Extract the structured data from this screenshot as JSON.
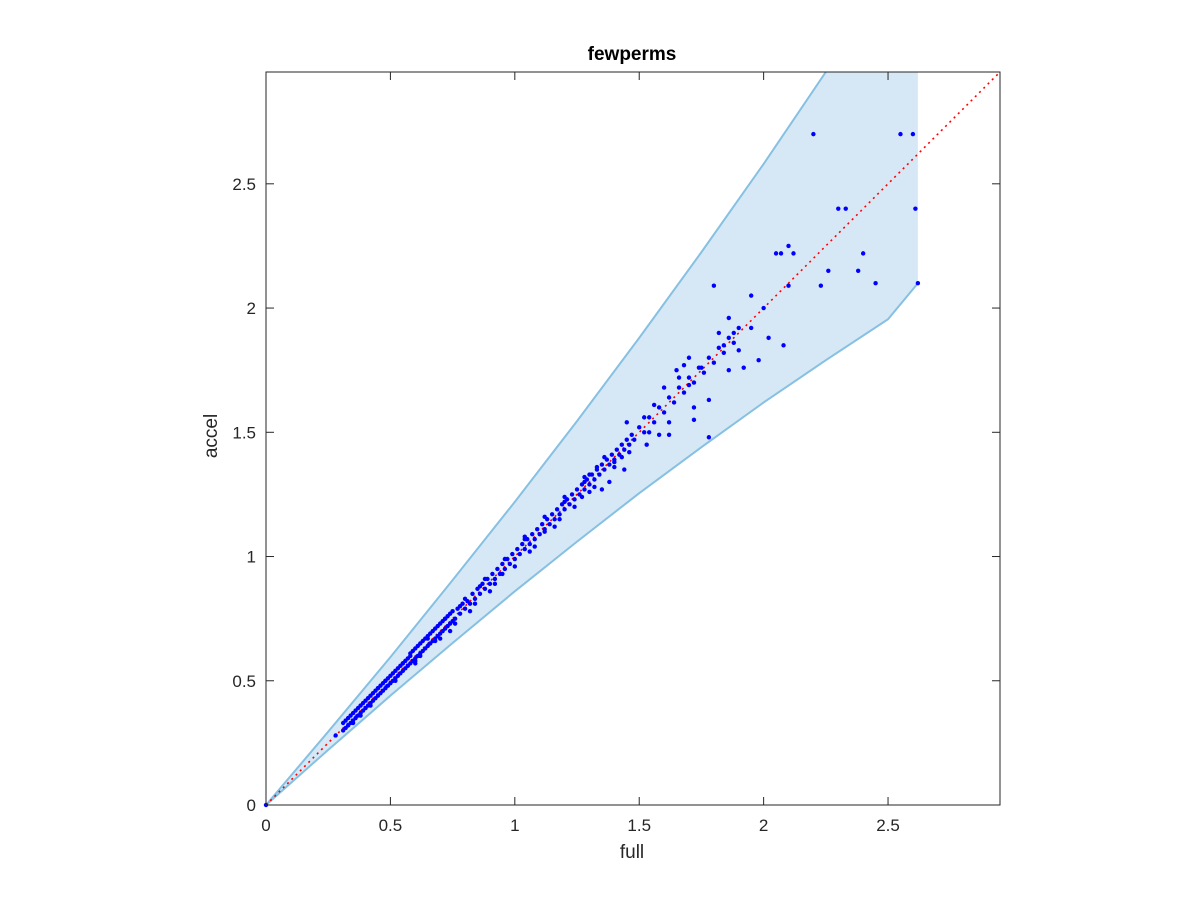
{
  "chart_data": {
    "type": "scatter",
    "title": "fewperms",
    "xlabel": "full",
    "ylabel": "accel",
    "xlim": [
      0,
      2.95
    ],
    "ylim": [
      0,
      2.95
    ],
    "xticks": [
      0,
      0.5,
      1,
      1.5,
      2,
      2.5
    ],
    "xtick_labels": [
      "0",
      "0.5",
      "1",
      "1.5",
      "2",
      "2.5"
    ],
    "yticks": [
      0,
      0.5,
      1,
      1.5,
      2,
      2.5
    ],
    "ytick_labels": [
      "0",
      "0.5",
      "1",
      "1.5",
      "2",
      "2.5"
    ],
    "grid": false,
    "box": true,
    "colors": {
      "points": "#0000ff",
      "band_fill": "#d6e8f5",
      "band_edge": "#86c0e2",
      "reference_line": "#ff0000"
    },
    "reference_line": {
      "style": "dotted",
      "x": [
        0,
        2.95
      ],
      "y": [
        0,
        2.95
      ]
    },
    "band": {
      "x": [
        0,
        0.25,
        0.5,
        0.75,
        1.0,
        1.25,
        1.5,
        1.75,
        2.0,
        2.25,
        2.5,
        2.62
      ],
      "upper": [
        0,
        0.295,
        0.595,
        0.905,
        1.22,
        1.545,
        1.88,
        2.225,
        2.58,
        2.95,
        3.33,
        3.52
      ],
      "lower": [
        0,
        0.222,
        0.44,
        0.652,
        0.86,
        1.06,
        1.255,
        1.44,
        1.62,
        1.79,
        1.955,
        2.1
      ],
      "right_edge": {
        "x": 2.62,
        "y_top": 2.95,
        "y_bottom": 2.1
      }
    },
    "series": [
      {
        "points": [
          [
            0,
            0
          ],
          [
            0.31,
            0.3
          ],
          [
            0.31,
            0.33
          ],
          [
            0.32,
            0.31
          ],
          [
            0.32,
            0.34
          ],
          [
            0.33,
            0.32
          ],
          [
            0.33,
            0.35
          ],
          [
            0.34,
            0.33
          ],
          [
            0.34,
            0.36
          ],
          [
            0.35,
            0.34
          ],
          [
            0.35,
            0.37
          ],
          [
            0.36,
            0.35
          ],
          [
            0.36,
            0.38
          ],
          [
            0.37,
            0.36
          ],
          [
            0.37,
            0.39
          ],
          [
            0.38,
            0.37
          ],
          [
            0.38,
            0.4
          ],
          [
            0.39,
            0.38
          ],
          [
            0.39,
            0.41
          ],
          [
            0.4,
            0.39
          ],
          [
            0.4,
            0.42
          ],
          [
            0.41,
            0.4
          ],
          [
            0.41,
            0.43
          ],
          [
            0.42,
            0.41
          ],
          [
            0.42,
            0.44
          ],
          [
            0.43,
            0.42
          ],
          [
            0.43,
            0.45
          ],
          [
            0.44,
            0.43
          ],
          [
            0.44,
            0.46
          ],
          [
            0.45,
            0.44
          ],
          [
            0.45,
            0.47
          ],
          [
            0.46,
            0.45
          ],
          [
            0.46,
            0.48
          ],
          [
            0.47,
            0.46
          ],
          [
            0.47,
            0.49
          ],
          [
            0.48,
            0.47
          ],
          [
            0.48,
            0.5
          ],
          [
            0.49,
            0.48
          ],
          [
            0.49,
            0.51
          ],
          [
            0.5,
            0.49
          ],
          [
            0.5,
            0.52
          ],
          [
            0.51,
            0.5
          ],
          [
            0.51,
            0.53
          ],
          [
            0.52,
            0.51
          ],
          [
            0.52,
            0.54
          ],
          [
            0.53,
            0.52
          ],
          [
            0.53,
            0.55
          ],
          [
            0.54,
            0.53
          ],
          [
            0.54,
            0.56
          ],
          [
            0.55,
            0.54
          ],
          [
            0.55,
            0.57
          ],
          [
            0.56,
            0.55
          ],
          [
            0.56,
            0.58
          ],
          [
            0.57,
            0.56
          ],
          [
            0.57,
            0.59
          ],
          [
            0.58,
            0.57
          ],
          [
            0.58,
            0.6
          ],
          [
            0.59,
            0.58
          ],
          [
            0.59,
            0.62
          ],
          [
            0.6,
            0.59
          ],
          [
            0.6,
            0.63
          ],
          [
            0.61,
            0.6
          ],
          [
            0.61,
            0.64
          ],
          [
            0.62,
            0.61
          ],
          [
            0.62,
            0.65
          ],
          [
            0.63,
            0.62
          ],
          [
            0.63,
            0.66
          ],
          [
            0.64,
            0.63
          ],
          [
            0.64,
            0.67
          ],
          [
            0.65,
            0.64
          ],
          [
            0.65,
            0.68
          ],
          [
            0.66,
            0.65
          ],
          [
            0.66,
            0.69
          ],
          [
            0.67,
            0.66
          ],
          [
            0.67,
            0.7
          ],
          [
            0.68,
            0.67
          ],
          [
            0.68,
            0.71
          ],
          [
            0.69,
            0.68
          ],
          [
            0.69,
            0.72
          ],
          [
            0.7,
            0.69
          ],
          [
            0.7,
            0.73
          ],
          [
            0.71,
            0.7
          ],
          [
            0.71,
            0.74
          ],
          [
            0.72,
            0.71
          ],
          [
            0.72,
            0.75
          ],
          [
            0.73,
            0.72
          ],
          [
            0.73,
            0.76
          ],
          [
            0.74,
            0.73
          ],
          [
            0.74,
            0.77
          ],
          [
            0.75,
            0.74
          ],
          [
            0.75,
            0.78
          ],
          [
            0.76,
            0.75
          ],
          [
            0.77,
            0.79
          ],
          [
            0.78,
            0.77
          ],
          [
            0.79,
            0.81
          ],
          [
            0.8,
            0.79
          ],
          [
            0.81,
            0.82
          ],
          [
            0.82,
            0.81
          ],
          [
            0.83,
            0.85
          ],
          [
            0.84,
            0.83
          ],
          [
            0.85,
            0.87
          ],
          [
            0.86,
            0.85
          ],
          [
            0.87,
            0.89
          ],
          [
            0.88,
            0.87
          ],
          [
            0.89,
            0.91
          ],
          [
            0.9,
            0.89
          ],
          [
            0.91,
            0.93
          ],
          [
            0.92,
            0.91
          ],
          [
            0.93,
            0.95
          ],
          [
            0.94,
            0.93
          ],
          [
            0.95,
            0.97
          ],
          [
            0.96,
            0.95
          ],
          [
            0.97,
            0.99
          ],
          [
            0.98,
            0.97
          ],
          [
            0.99,
            1.01
          ],
          [
            1.0,
            0.99
          ],
          [
            1.01,
            1.03
          ],
          [
            1.02,
            1.01
          ],
          [
            1.03,
            1.05
          ],
          [
            1.04,
            1.03
          ],
          [
            1.05,
            1.07
          ],
          [
            1.06,
            1.05
          ],
          [
            1.07,
            1.09
          ],
          [
            1.08,
            1.07
          ],
          [
            1.09,
            1.11
          ],
          [
            1.1,
            1.09
          ],
          [
            1.11,
            1.13
          ],
          [
            1.12,
            1.11
          ],
          [
            1.13,
            1.15
          ],
          [
            1.14,
            1.13
          ],
          [
            1.15,
            1.17
          ],
          [
            1.16,
            1.15
          ],
          [
            1.17,
            1.19
          ],
          [
            1.18,
            1.17
          ],
          [
            1.19,
            1.21
          ],
          [
            1.2,
            1.19
          ],
          [
            1.21,
            1.23
          ],
          [
            1.22,
            1.21
          ],
          [
            1.23,
            1.25
          ],
          [
            1.24,
            1.23
          ],
          [
            1.25,
            1.27
          ],
          [
            1.26,
            1.25
          ],
          [
            1.27,
            1.29
          ],
          [
            1.28,
            1.27
          ],
          [
            1.29,
            1.31
          ],
          [
            1.3,
            1.29
          ],
          [
            1.31,
            1.33
          ],
          [
            1.32,
            1.31
          ],
          [
            1.33,
            1.35
          ],
          [
            1.34,
            1.33
          ],
          [
            1.35,
            1.37
          ],
          [
            1.36,
            1.35
          ],
          [
            1.37,
            1.39
          ],
          [
            1.38,
            1.37
          ],
          [
            1.39,
            1.41
          ],
          [
            1.4,
            1.39
          ],
          [
            1.41,
            1.43
          ],
          [
            1.42,
            1.41
          ],
          [
            1.43,
            1.45
          ],
          [
            1.44,
            1.43
          ],
          [
            1.45,
            1.47
          ],
          [
            1.46,
            1.45
          ],
          [
            1.47,
            1.49
          ],
          [
            1.48,
            1.47
          ],
          [
            1.5,
            1.52
          ],
          [
            1.52,
            1.5
          ],
          [
            1.54,
            1.56
          ],
          [
            1.56,
            1.54
          ],
          [
            1.58,
            1.6
          ],
          [
            1.6,
            1.58
          ],
          [
            1.62,
            1.64
          ],
          [
            1.64,
            1.62
          ],
          [
            1.66,
            1.68
          ],
          [
            1.68,
            1.66
          ],
          [
            1.7,
            1.72
          ],
          [
            1.72,
            1.7
          ],
          [
            1.74,
            1.76
          ],
          [
            1.76,
            1.74
          ],
          [
            1.78,
            1.8
          ],
          [
            1.8,
            1.78
          ],
          [
            1.82,
            1.84
          ],
          [
            1.84,
            1.82
          ],
          [
            1.86,
            1.88
          ],
          [
            1.88,
            1.86
          ],
          [
            1.9,
            1.92
          ],
          [
            0.28,
            0.28
          ],
          [
            0.45,
            0.47
          ],
          [
            0.58,
            0.61
          ],
          [
            0.62,
            0.6
          ],
          [
            0.7,
            0.67
          ],
          [
            0.78,
            0.8
          ],
          [
            0.86,
            0.88
          ],
          [
            0.95,
            0.93
          ],
          [
            1.04,
            1.07
          ],
          [
            1.12,
            1.1
          ],
          [
            1.2,
            1.22
          ],
          [
            1.27,
            1.24
          ],
          [
            1.33,
            1.36
          ],
          [
            1.4,
            1.38
          ],
          [
            0.35,
            0.33
          ],
          [
            0.42,
            0.4
          ],
          [
            0.52,
            0.5
          ],
          [
            0.6,
            0.58
          ],
          [
            0.68,
            0.66
          ],
          [
            0.76,
            0.73
          ],
          [
            0.84,
            0.81
          ],
          [
            0.92,
            0.89
          ],
          [
            1.0,
            0.96
          ],
          [
            1.08,
            1.04
          ],
          [
            1.16,
            1.12
          ],
          [
            1.24,
            1.2
          ],
          [
            1.32,
            1.28
          ],
          [
            1.4,
            1.36
          ],
          [
            0.48,
            0.5
          ],
          [
            0.55,
            0.57
          ],
          [
            0.65,
            0.67
          ],
          [
            0.72,
            0.75
          ],
          [
            0.8,
            0.83
          ],
          [
            0.88,
            0.91
          ],
          [
            0.96,
            0.99
          ],
          [
            1.04,
            1.08
          ],
          [
            1.12,
            1.16
          ],
          [
            1.2,
            1.24
          ],
          [
            1.28,
            1.32
          ],
          [
            1.36,
            1.4
          ],
          [
            0.38,
            0.36
          ],
          [
            0.6,
            0.57
          ],
          [
            0.74,
            0.7
          ],
          [
            0.82,
            0.78
          ],
          [
            0.9,
            0.86
          ],
          [
            1.06,
            1.02
          ],
          [
            1.18,
            1.15
          ],
          [
            1.3,
            1.26
          ],
          [
            1.46,
            1.42
          ],
          [
            1.54,
            1.5
          ],
          [
            1.44,
            1.35
          ],
          [
            1.45,
            1.54
          ],
          [
            1.52,
            1.56
          ],
          [
            1.56,
            1.61
          ],
          [
            1.58,
            1.49
          ],
          [
            1.62,
            1.54
          ],
          [
            1.53,
            1.45
          ],
          [
            1.43,
            1.4
          ],
          [
            1.38,
            1.3
          ],
          [
            1.35,
            1.27
          ],
          [
            1.28,
            1.3
          ],
          [
            1.3,
            1.33
          ],
          [
            1.65,
            1.75
          ],
          [
            1.68,
            1.77
          ],
          [
            1.7,
            1.69
          ],
          [
            1.72,
            1.6
          ],
          [
            1.75,
            1.76
          ],
          [
            1.78,
            1.63
          ],
          [
            1.78,
            1.48
          ],
          [
            1.8,
            2.09
          ],
          [
            1.82,
            1.9
          ],
          [
            1.84,
            1.85
          ],
          [
            1.86,
            1.96
          ],
          [
            1.88,
            1.9
          ],
          [
            1.9,
            1.83
          ],
          [
            1.92,
            1.76
          ],
          [
            1.95,
            1.92
          ],
          [
            1.98,
            1.79
          ],
          [
            2.0,
            2.0
          ],
          [
            2.02,
            1.88
          ],
          [
            2.05,
            2.22
          ],
          [
            2.07,
            2.22
          ],
          [
            2.08,
            1.85
          ],
          [
            2.1,
            2.09
          ],
          [
            2.12,
            2.22
          ],
          [
            2.2,
            2.7
          ],
          [
            2.23,
            2.09
          ],
          [
            2.26,
            2.15
          ],
          [
            2.3,
            2.4
          ],
          [
            2.33,
            2.4
          ],
          [
            2.38,
            2.15
          ],
          [
            2.4,
            2.22
          ],
          [
            2.45,
            2.1
          ],
          [
            2.55,
            2.7
          ],
          [
            2.6,
            2.7
          ],
          [
            2.61,
            2.4
          ],
          [
            2.62,
            2.1
          ],
          [
            1.72,
            1.55
          ],
          [
            1.86,
            1.75
          ],
          [
            1.95,
            2.05
          ],
          [
            2.1,
            2.25
          ],
          [
            1.6,
            1.68
          ],
          [
            1.62,
            1.49
          ],
          [
            1.66,
            1.72
          ],
          [
            1.7,
            1.8
          ]
        ]
      }
    ]
  }
}
